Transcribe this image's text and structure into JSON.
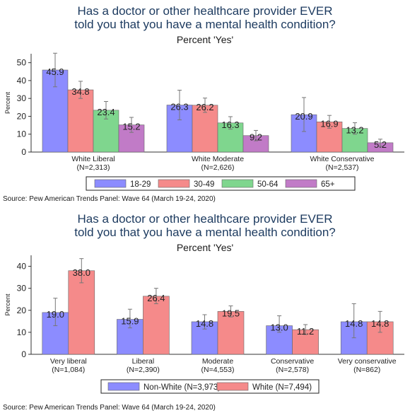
{
  "chart_data": [
    {
      "type": "bar",
      "title": "Has a doctor or other healthcare provider EVER told you that you have a mental health condition?",
      "title_lines": [
        "Has a doctor or other healthcare provider EVER",
        "told you that you have a mental health condition?"
      ],
      "subtitle": "Percent 'Yes'",
      "ylabel": "Percent",
      "ylim": [
        0,
        55
      ],
      "yticks": [
        0,
        10,
        20,
        30,
        40,
        50
      ],
      "categories": [
        "White Liberal",
        "White Moderate",
        "White Conservative"
      ],
      "category_n": [
        "(N=2,313)",
        "(N=2,626)",
        "(N=2,537)"
      ],
      "series": [
        {
          "name": "18-29",
          "color": "#8c8cff",
          "values": [
            45.9,
            26.3,
            20.9
          ],
          "labels": [
            "45.9",
            "26.3",
            "20.9"
          ],
          "ci": [
            [
              36.5,
              55.3
            ],
            [
              18.0,
              34.6
            ],
            [
              11.5,
              30.5
            ]
          ]
        },
        {
          "name": "30-49",
          "color": "#f58a8a",
          "values": [
            34.8,
            26.2,
            16.9
          ],
          "labels": [
            "34.8",
            "26.2",
            "16.9"
          ],
          "ci": [
            [
              30.0,
              39.6
            ],
            [
              22.2,
              30.2
            ],
            [
              13.3,
              20.5
            ]
          ]
        },
        {
          "name": "50-64",
          "color": "#7fd68e",
          "values": [
            23.4,
            16.3,
            13.2
          ],
          "labels": [
            "23.4",
            "16.3",
            "13.2"
          ],
          "ci": [
            [
              18.5,
              28.3
            ],
            [
              12.8,
              19.8
            ],
            [
              10.0,
              16.4
            ]
          ]
        },
        {
          "name": "65+",
          "color": "#c17bc7",
          "values": [
            15.2,
            9.2,
            5.2
          ],
          "labels": [
            "15.2",
            "9.2",
            "5.2"
          ],
          "ci": [
            [
              11.0,
              19.4
            ],
            [
              6.3,
              12.1
            ],
            [
              3.2,
              7.2
            ]
          ]
        }
      ],
      "legend_position": "bottom",
      "grid": false
    },
    {
      "type": "bar",
      "title": "Has a doctor or other healthcare provider EVER told you that you have a mental health condition?",
      "title_lines": [
        "Has a doctor or other healthcare provider EVER",
        "told you that you have a mental health condition?"
      ],
      "subtitle": "Percent 'Yes'",
      "ylabel": "Percent",
      "ylim": [
        0,
        45
      ],
      "yticks": [
        0,
        10,
        20,
        30,
        40
      ],
      "categories": [
        "Very liberal",
        "Liberal",
        "Moderate",
        "Conservative",
        "Very conservative"
      ],
      "category_n": [
        "(N=1,084)",
        "(N=2,390)",
        "(N=4,553)",
        "(N=2,578)",
        "(N=862)"
      ],
      "series": [
        {
          "name": "Non-White (N=3,973)",
          "color": "#8c8cff",
          "values": [
            19.0,
            15.9,
            14.8,
            13.0,
            14.8
          ],
          "labels": [
            "19.0",
            "15.9",
            "14.8",
            "13.0",
            "14.8"
          ],
          "ci": [
            [
              13.0,
              25.5
            ],
            [
              12.0,
              20.5
            ],
            [
              11.5,
              18.0
            ],
            [
              10.0,
              17.5
            ],
            [
              7.5,
              23.0
            ]
          ]
        },
        {
          "name": "White (N=7,494)",
          "color": "#f58a8a",
          "values": [
            38.0,
            26.4,
            19.5,
            11.2,
            14.8
          ],
          "labels": [
            "38.0",
            "26.4",
            "19.5",
            "11.2",
            "14.8"
          ],
          "ci": [
            [
              32.5,
              43.5
            ],
            [
              23.0,
              30.0
            ],
            [
              17.0,
              22.0
            ],
            [
              9.0,
              13.5
            ],
            [
              10.0,
              19.5
            ]
          ]
        }
      ],
      "legend_position": "bottom",
      "grid": false
    }
  ],
  "sources": [
    "Source: Pew American Trends Panel: Wave 64 (March 19-24, 2020)",
    "Source: Pew American Trends Panel: Wave 64 (March 19-24, 2020)"
  ]
}
